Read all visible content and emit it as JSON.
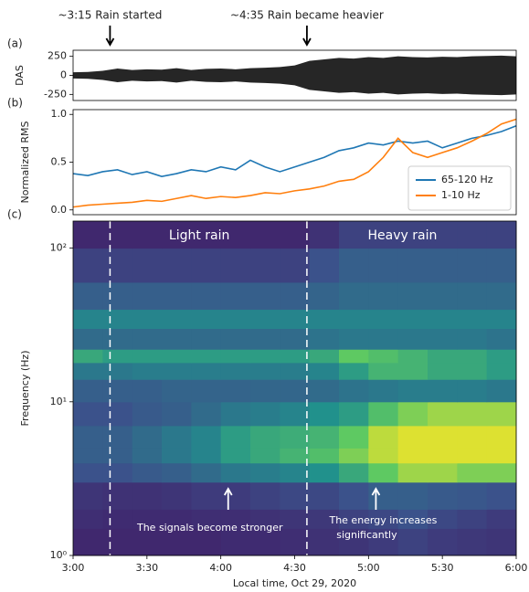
{
  "chart_data": [
    {
      "type": "envelope",
      "label": "(a)",
      "ylabel": "DAS",
      "color": "#000000",
      "xlim": [
        3,
        6
      ],
      "ylim": [
        -330,
        330
      ],
      "yticks": [
        -250,
        0,
        250
      ],
      "x": [
        3.0,
        3.1,
        3.2,
        3.3,
        3.4,
        3.5,
        3.6,
        3.7,
        3.8,
        3.9,
        4.0,
        4.1,
        4.2,
        4.3,
        4.4,
        4.5,
        4.6,
        4.7,
        4.8,
        4.9,
        5.0,
        5.1,
        5.2,
        5.3,
        5.4,
        5.5,
        5.6,
        5.7,
        5.8,
        5.9,
        6.0
      ],
      "values": [
        40,
        45,
        60,
        90,
        70,
        80,
        75,
        95,
        70,
        85,
        90,
        80,
        95,
        100,
        110,
        130,
        190,
        210,
        230,
        220,
        240,
        230,
        250,
        240,
        235,
        245,
        240,
        250,
        255,
        260,
        250
      ]
    },
    {
      "type": "line",
      "label": "(b)",
      "ylabel": "Normalized RMS",
      "xlim": [
        3,
        6
      ],
      "ylim": [
        -0.05,
        1.05
      ],
      "yticks": [
        {
          "value": 0,
          "label": "0.0"
        },
        0.5,
        {
          "value": 1,
          "label": "1.0"
        }
      ],
      "legend": "lower right",
      "x": [
        3.0,
        3.1,
        3.2,
        3.3,
        3.4,
        3.5,
        3.6,
        3.7,
        3.8,
        3.9,
        4.0,
        4.1,
        4.2,
        4.3,
        4.4,
        4.5,
        4.6,
        4.7,
        4.8,
        4.9,
        5.0,
        5.1,
        5.2,
        5.3,
        5.4,
        5.5,
        5.6,
        5.7,
        5.8,
        5.9,
        6.0
      ],
      "series": [
        {
          "name": "65-120 Hz",
          "color": "#1f77b4",
          "values": [
            0.38,
            0.36,
            0.4,
            0.42,
            0.37,
            0.4,
            0.35,
            0.38,
            0.42,
            0.4,
            0.45,
            0.42,
            0.52,
            0.45,
            0.4,
            0.45,
            0.5,
            0.55,
            0.62,
            0.65,
            0.7,
            0.68,
            0.72,
            0.7,
            0.72,
            0.65,
            0.7,
            0.75,
            0.78,
            0.82,
            0.88
          ]
        },
        {
          "name": "1-10 Hz",
          "color": "#ff7f0e",
          "values": [
            0.03,
            0.05,
            0.06,
            0.07,
            0.08,
            0.1,
            0.09,
            0.12,
            0.15,
            0.12,
            0.14,
            0.13,
            0.15,
            0.18,
            0.17,
            0.2,
            0.22,
            0.25,
            0.3,
            0.32,
            0.4,
            0.55,
            0.75,
            0.6,
            0.55,
            0.6,
            0.65,
            0.72,
            0.8,
            0.9,
            0.95
          ]
        }
      ]
    },
    {
      "type": "heatmap",
      "label": "(c)",
      "ylabel": "Frequency (Hz)",
      "xlabel": "Local time, Oct 29, 2020",
      "xlim": [
        3,
        6
      ],
      "ylim": [
        1,
        150
      ],
      "log_y": true,
      "xticks": [
        {
          "value": 3,
          "label": "3:00"
        },
        {
          "value": 3.5,
          "label": "3:30"
        },
        {
          "value": 4,
          "label": "4:00"
        },
        {
          "value": 4.5,
          "label": "4:30"
        },
        {
          "value": 5,
          "label": "5:00"
        },
        {
          "value": 5.5,
          "label": "5:30"
        },
        {
          "value": 6,
          "label": "6:00"
        }
      ],
      "yticks": [
        {
          "value": 1,
          "label": "10⁰"
        },
        {
          "value": 10,
          "label": "10¹"
        },
        {
          "value": 100,
          "label": "10²"
        }
      ],
      "xbins": [
        3.0,
        3.2,
        3.4,
        3.6,
        3.8,
        4.0,
        4.2,
        4.4,
        4.6,
        4.8,
        5.0,
        5.2,
        5.4,
        5.6,
        5.8,
        6.0
      ],
      "ybins": [
        1,
        1.5,
        2,
        3,
        4,
        5,
        7,
        10,
        14,
        18,
        22,
        30,
        40,
        60,
        100,
        150
      ],
      "z": [
        [
          0.12,
          0.12,
          0.12,
          0.12,
          0.12,
          0.13,
          0.13,
          0.14,
          0.15,
          0.16,
          0.18,
          0.2,
          0.18,
          0.17,
          0.16
        ],
        [
          0.14,
          0.13,
          0.13,
          0.13,
          0.14,
          0.14,
          0.15,
          0.16,
          0.17,
          0.2,
          0.22,
          0.25,
          0.22,
          0.2,
          0.18
        ],
        [
          0.16,
          0.15,
          0.15,
          0.16,
          0.18,
          0.18,
          0.2,
          0.22,
          0.22,
          0.25,
          0.3,
          0.3,
          0.28,
          0.27,
          0.25
        ],
        [
          0.25,
          0.25,
          0.28,
          0.3,
          0.35,
          0.4,
          0.42,
          0.45,
          0.5,
          0.6,
          0.75,
          0.85,
          0.85,
          0.8,
          0.8
        ],
        [
          0.3,
          0.3,
          0.35,
          0.4,
          0.45,
          0.55,
          0.6,
          0.65,
          0.7,
          0.8,
          0.9,
          0.95,
          0.95,
          0.95,
          0.95
        ],
        [
          0.3,
          0.3,
          0.35,
          0.4,
          0.45,
          0.55,
          0.6,
          0.62,
          0.65,
          0.75,
          0.9,
          0.95,
          0.95,
          0.95,
          0.95
        ],
        [
          0.25,
          0.25,
          0.28,
          0.3,
          0.35,
          0.4,
          0.42,
          0.45,
          0.5,
          0.55,
          0.7,
          0.8,
          0.85,
          0.85,
          0.85
        ],
        [
          0.3,
          0.3,
          0.3,
          0.32,
          0.32,
          0.32,
          0.33,
          0.33,
          0.35,
          0.38,
          0.4,
          0.42,
          0.42,
          0.42,
          0.4
        ],
        [
          0.4,
          0.4,
          0.42,
          0.42,
          0.42,
          0.42,
          0.42,
          0.42,
          0.45,
          0.55,
          0.65,
          0.65,
          0.6,
          0.6,
          0.55
        ],
        [
          0.6,
          0.55,
          0.55,
          0.55,
          0.55,
          0.55,
          0.55,
          0.55,
          0.6,
          0.75,
          0.7,
          0.65,
          0.6,
          0.6,
          0.55
        ],
        [
          0.35,
          0.35,
          0.35,
          0.35,
          0.35,
          0.35,
          0.35,
          0.35,
          0.38,
          0.4,
          0.4,
          0.4,
          0.4,
          0.4,
          0.38
        ],
        [
          0.45,
          0.45,
          0.45,
          0.45,
          0.45,
          0.45,
          0.45,
          0.45,
          0.45,
          0.45,
          0.45,
          0.45,
          0.45,
          0.45,
          0.45
        ],
        [
          0.3,
          0.3,
          0.3,
          0.3,
          0.3,
          0.3,
          0.3,
          0.3,
          0.32,
          0.35,
          0.35,
          0.35,
          0.35,
          0.35,
          0.35
        ],
        [
          0.2,
          0.2,
          0.2,
          0.2,
          0.2,
          0.2,
          0.2,
          0.2,
          0.25,
          0.3,
          0.3,
          0.3,
          0.3,
          0.3,
          0.3
        ],
        [
          0.12,
          0.12,
          0.12,
          0.12,
          0.12,
          0.12,
          0.12,
          0.12,
          0.15,
          0.2,
          0.2,
          0.2,
          0.2,
          0.2,
          0.2
        ]
      ],
      "events": [
        {
          "x": 3.25,
          "label": "~3:15 Rain started"
        },
        {
          "x": 4.583,
          "label": "~4:35 Rain became heavier"
        }
      ],
      "regions": [
        "Light rain",
        "Heavy rain"
      ],
      "annotations": [
        {
          "x": 4.05,
          "text": "The signals become stronger"
        },
        {
          "x": 5.05,
          "text": "The energy increases significantly"
        }
      ]
    }
  ]
}
